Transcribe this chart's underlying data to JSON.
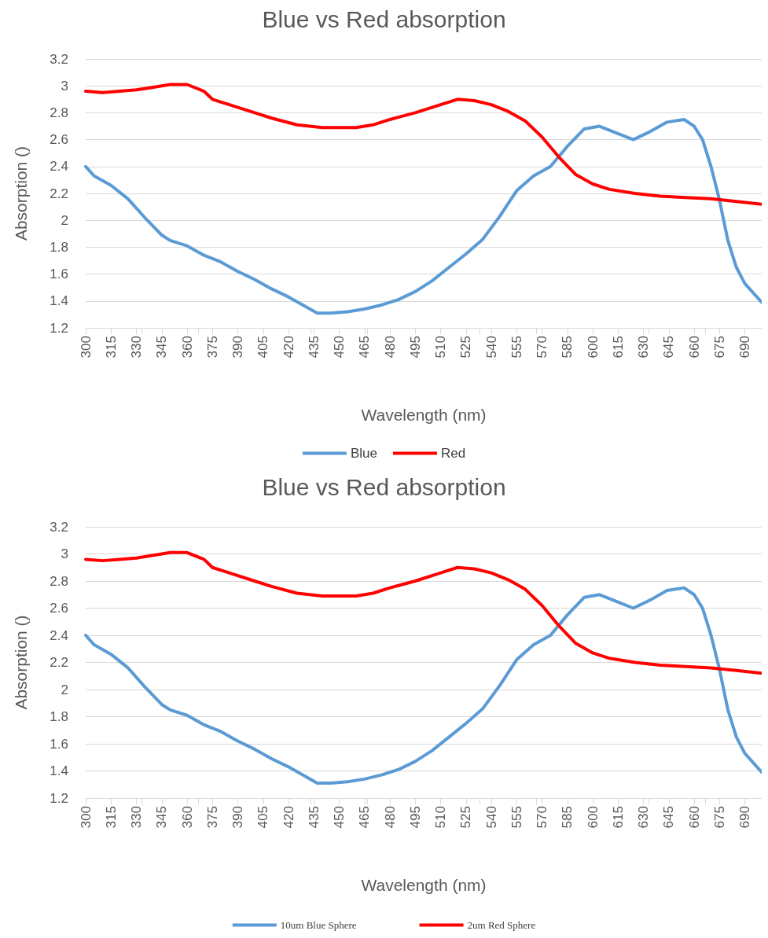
{
  "chart_data": [
    {
      "type": "line",
      "title": "Blue vs Red absorption",
      "xlabel": "Wavelength (nm)",
      "ylabel": "Absorption ()",
      "xlim": [
        300,
        700
      ],
      "xticks": [
        300,
        315,
        330,
        345,
        360,
        375,
        390,
        405,
        420,
        435,
        450,
        465,
        480,
        495,
        510,
        525,
        540,
        555,
        570,
        585,
        600,
        615,
        630,
        645,
        660,
        675,
        690
      ],
      "ylim": [
        1.2,
        3.2
      ],
      "yticks": [
        1.2,
        1.4,
        1.6,
        1.8,
        2,
        2.2,
        2.4,
        2.6,
        2.8,
        3,
        3.2
      ],
      "grid": "y",
      "legend": "bottom",
      "marker": "none",
      "series": [
        {
          "name": "Blue",
          "color": "#5b9bd5",
          "x": [
            300,
            305,
            315,
            325,
            335,
            345,
            350,
            360,
            370,
            380,
            390,
            400,
            410,
            420,
            430,
            437,
            445,
            455,
            465,
            475,
            485,
            495,
            505,
            515,
            525,
            535,
            545,
            555,
            565,
            575,
            585,
            595,
            604,
            614,
            624,
            634,
            644,
            654,
            660,
            665,
            670,
            675,
            680,
            685,
            690,
            700
          ],
          "values": [
            2.4,
            2.33,
            2.26,
            2.16,
            2.02,
            1.89,
            1.85,
            1.81,
            1.74,
            1.69,
            1.62,
            1.56,
            1.49,
            1.43,
            1.36,
            1.31,
            1.31,
            1.32,
            1.34,
            1.37,
            1.41,
            1.47,
            1.55,
            1.65,
            1.75,
            1.86,
            2.03,
            2.22,
            2.33,
            2.4,
            2.55,
            2.68,
            2.7,
            2.65,
            2.6,
            2.66,
            2.73,
            2.75,
            2.7,
            2.6,
            2.4,
            2.15,
            1.85,
            1.65,
            1.53,
            1.39
          ]
        },
        {
          "name": "Red",
          "color": "#ff0000",
          "x": [
            300,
            310,
            320,
            330,
            340,
            350,
            360,
            370,
            375,
            385,
            400,
            410,
            425,
            440,
            460,
            470,
            480,
            495,
            510,
            520,
            530,
            540,
            550,
            560,
            570,
            580,
            590,
            600,
            610,
            625,
            640,
            655,
            670,
            685,
            700
          ],
          "values": [
            2.96,
            2.95,
            2.96,
            2.97,
            2.99,
            3.01,
            3.01,
            2.96,
            2.9,
            2.86,
            2.8,
            2.76,
            2.71,
            2.69,
            2.69,
            2.71,
            2.75,
            2.8,
            2.86,
            2.9,
            2.89,
            2.86,
            2.81,
            2.74,
            2.62,
            2.47,
            2.34,
            2.27,
            2.23,
            2.2,
            2.18,
            2.17,
            2.16,
            2.14,
            2.12
          ]
        }
      ]
    },
    {
      "type": "line",
      "title": "Blue vs Red absorption",
      "xlabel": "Wavelength (nm)",
      "ylabel": "Absorption ()",
      "xlim": [
        300,
        700
      ],
      "xticks": [
        300,
        315,
        330,
        345,
        360,
        375,
        390,
        405,
        420,
        435,
        450,
        465,
        480,
        495,
        510,
        525,
        540,
        555,
        570,
        585,
        600,
        615,
        630,
        645,
        660,
        675,
        690
      ],
      "ylim": [
        1.2,
        3.2
      ],
      "yticks": [
        1.2,
        1.4,
        1.6,
        1.8,
        2,
        2.2,
        2.4,
        2.6,
        2.8,
        3,
        3.2
      ],
      "grid": "y",
      "legend": "bottom",
      "marker": "none",
      "series": [
        {
          "name": "10um Blue Sphere",
          "color": "#5b9bd5",
          "x": [
            300,
            305,
            315,
            325,
            335,
            345,
            350,
            360,
            370,
            380,
            390,
            400,
            410,
            420,
            430,
            437,
            445,
            455,
            465,
            475,
            485,
            495,
            505,
            515,
            525,
            535,
            545,
            555,
            565,
            575,
            585,
            595,
            604,
            614,
            624,
            634,
            644,
            654,
            660,
            665,
            670,
            675,
            680,
            685,
            690,
            700
          ],
          "values": [
            2.4,
            2.33,
            2.26,
            2.16,
            2.02,
            1.89,
            1.85,
            1.81,
            1.74,
            1.69,
            1.62,
            1.56,
            1.49,
            1.43,
            1.36,
            1.31,
            1.31,
            1.32,
            1.34,
            1.37,
            1.41,
            1.47,
            1.55,
            1.65,
            1.75,
            1.86,
            2.03,
            2.22,
            2.33,
            2.4,
            2.55,
            2.68,
            2.7,
            2.65,
            2.6,
            2.66,
            2.73,
            2.75,
            2.7,
            2.6,
            2.4,
            2.15,
            1.85,
            1.65,
            1.53,
            1.39
          ]
        },
        {
          "name": "2um Red Sphere",
          "color": "#ff0000",
          "x": [
            300,
            310,
            320,
            330,
            340,
            350,
            360,
            370,
            375,
            385,
            400,
            410,
            425,
            440,
            460,
            470,
            480,
            495,
            510,
            520,
            530,
            540,
            550,
            560,
            570,
            580,
            590,
            600,
            610,
            625,
            640,
            655,
            670,
            685,
            700
          ],
          "values": [
            2.96,
            2.95,
            2.96,
            2.97,
            2.99,
            3.01,
            3.01,
            2.96,
            2.9,
            2.86,
            2.8,
            2.76,
            2.71,
            2.69,
            2.69,
            2.71,
            2.75,
            2.8,
            2.86,
            2.9,
            2.89,
            2.86,
            2.81,
            2.74,
            2.62,
            2.47,
            2.34,
            2.27,
            2.23,
            2.2,
            2.18,
            2.17,
            2.16,
            2.14,
            2.12
          ]
        }
      ]
    }
  ]
}
